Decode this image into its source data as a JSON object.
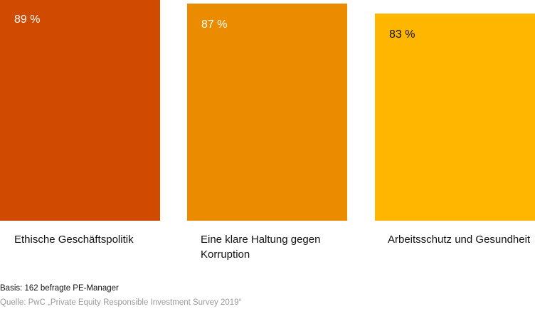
{
  "chart_data": {
    "type": "bar",
    "categories": [
      "Ethische Geschäftspolitik",
      "Eine klare Haltung gegen Korruption",
      "Arbeitsschutz und Gesundheit"
    ],
    "values": [
      89,
      87,
      83
    ],
    "data_labels": [
      "89 %",
      "87 %",
      "83 %"
    ],
    "colors": [
      "#d04a02",
      "#eb8c00",
      "#ffb600"
    ],
    "label_color_light": "#ffffff",
    "label_color_dark": "#111111",
    "ylim": [
      0,
      89
    ],
    "grid": false
  },
  "notes": {
    "basis": "Basis: 162 befragte PE-Manager",
    "source": "Quelle: PwC „Private Equity Responsible Investment Survey 2019“"
  }
}
